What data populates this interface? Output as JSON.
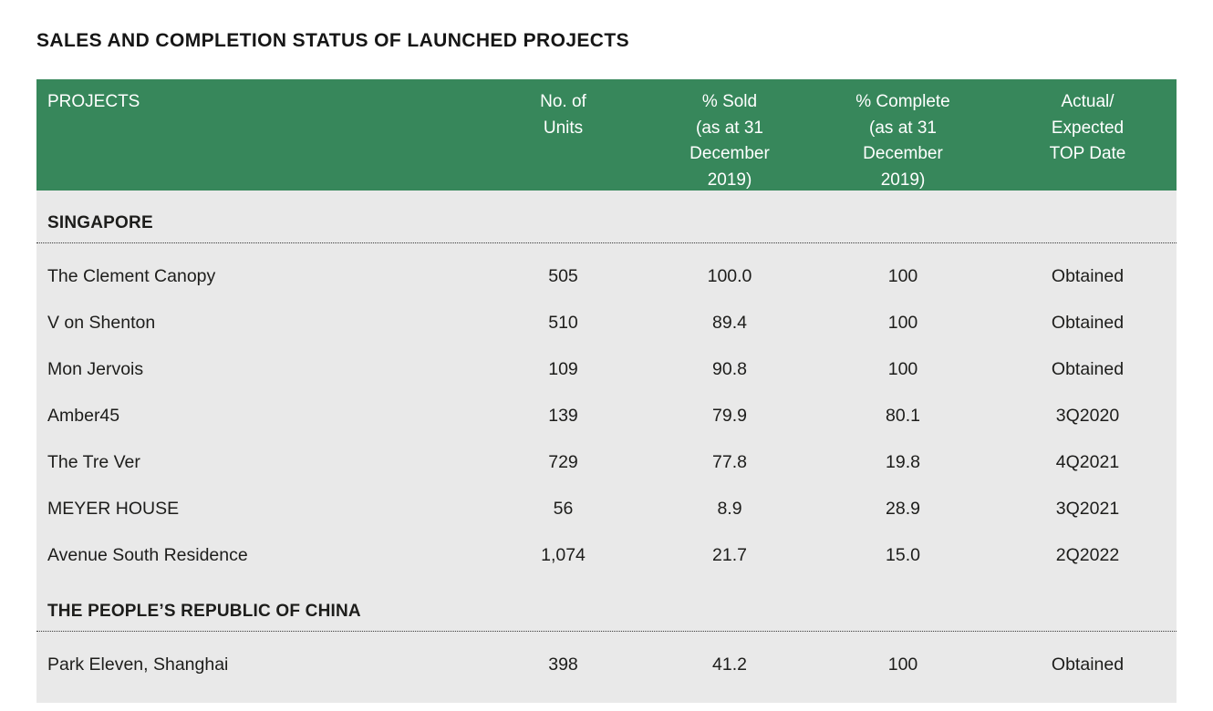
{
  "page": {
    "title": "SALES AND COMPLETION STATUS OF LAUNCHED PROJECTS"
  },
  "table": {
    "colors": {
      "header_green": "#37875B",
      "body_gray": "#E9E9E9"
    },
    "columns": [
      {
        "key": "projects",
        "label_lines": [
          "PROJECTS"
        ]
      },
      {
        "key": "units",
        "label_lines": [
          "No. of",
          "Units"
        ]
      },
      {
        "key": "sold",
        "label_lines": [
          "% Sold",
          "(as at 31",
          "December",
          "2019)"
        ]
      },
      {
        "key": "complete",
        "label_lines": [
          "% Complete",
          "(as at 31",
          "December",
          "2019)"
        ]
      },
      {
        "key": "top-date",
        "label_lines": [
          "Actual/",
          "Expected",
          "TOP Date"
        ]
      }
    ],
    "sections": [
      {
        "name": "SINGAPORE",
        "rows": [
          {
            "project": "The Clement Canopy",
            "units": "505",
            "sold": "100.0",
            "complete": "100",
            "top": "Obtained"
          },
          {
            "project": "V on Shenton",
            "units": "510",
            "sold": "89.4",
            "complete": "100",
            "top": "Obtained"
          },
          {
            "project": "Mon Jervois",
            "units": "109",
            "sold": "90.8",
            "complete": "100",
            "top": "Obtained"
          },
          {
            "project": "Amber45",
            "units": "139",
            "sold": "79.9",
            "complete": "80.1",
            "top": "3Q2020"
          },
          {
            "project": "The Tre Ver",
            "units": "729",
            "sold": "77.8",
            "complete": "19.8",
            "top": "4Q2021"
          },
          {
            "project": "MEYER HOUSE",
            "units": "56",
            "sold": "8.9",
            "complete": "28.9",
            "top": "3Q2021"
          },
          {
            "project": "Avenue South Residence",
            "units": "1,074",
            "sold": "21.7",
            "complete": "15.0",
            "top": "2Q2022"
          }
        ]
      },
      {
        "name": "THE PEOPLE’S REPUBLIC OF CHINA",
        "rows": [
          {
            "project": "Park Eleven, Shanghai",
            "units": "398",
            "sold": "41.2",
            "complete": "100",
            "top": "Obtained"
          }
        ]
      }
    ]
  }
}
